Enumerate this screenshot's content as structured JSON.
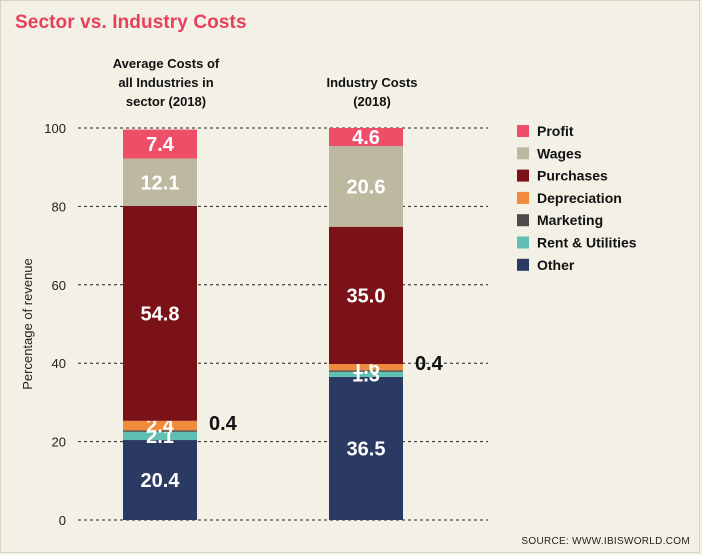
{
  "source": "SOURCE: WWW.IBISWORLD.COM",
  "chart_data": {
    "type": "bar",
    "stacked": true,
    "title": "Sector vs. Industry Costs",
    "ylabel": "Percentage of revenue",
    "xlabel": "",
    "ylim": [
      0,
      100
    ],
    "yticks": [
      0,
      20,
      40,
      60,
      80,
      100
    ],
    "grid": true,
    "legend_position": "right",
    "categories": [
      [
        "Average Costs of",
        "all Industries in",
        "sector (2018)"
      ],
      [
        "Industry Costs",
        "(2018)"
      ]
    ],
    "series": [
      {
        "name": "Other",
        "color": "#2b3a63",
        "values": [
          20.4,
          36.5
        ],
        "labels": [
          "20.4",
          "36.5"
        ]
      },
      {
        "name": "Rent & Utilities",
        "color": "#5fbfb2",
        "values": [
          2.1,
          1.3
        ],
        "labels": [
          "2.1",
          "1.3"
        ]
      },
      {
        "name": "Marketing",
        "color": "#4e4a47",
        "values": [
          0.4,
          0.4
        ],
        "labels": [
          "0.4",
          "0.4"
        ],
        "label_outside": true
      },
      {
        "name": "Depreciation",
        "color": "#f08a3c",
        "values": [
          2.4,
          1.6
        ],
        "labels": [
          "2.4",
          "1.6"
        ]
      },
      {
        "name": "Purchases",
        "color": "#7a1218",
        "values": [
          54.8,
          35.0
        ],
        "labels": [
          "54.8",
          "35.0"
        ]
      },
      {
        "name": "Wages",
        "color": "#bdb8a0",
        "values": [
          12.1,
          20.6
        ],
        "labels": [
          "12.1",
          "20.6"
        ]
      },
      {
        "name": "Profit",
        "color": "#ef4e68",
        "values": [
          7.4,
          4.6
        ],
        "labels": [
          "7.4",
          "4.6"
        ]
      }
    ],
    "legend_order": [
      "Profit",
      "Wages",
      "Purchases",
      "Depreciation",
      "Marketing",
      "Rent & Utilities",
      "Other"
    ]
  }
}
